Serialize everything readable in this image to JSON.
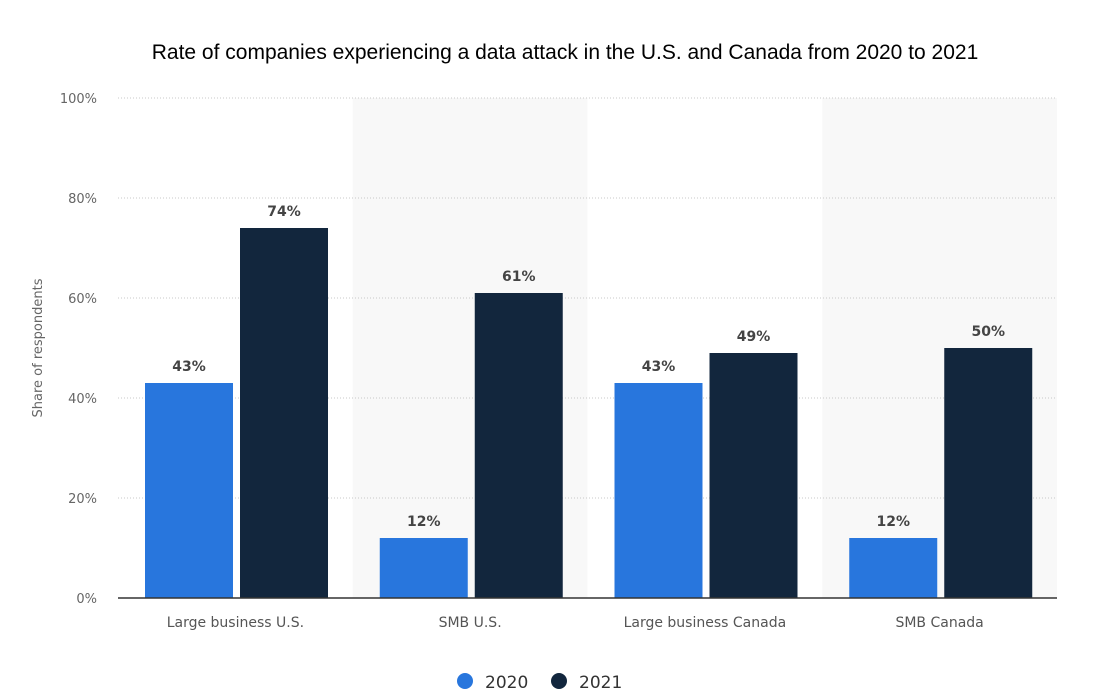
{
  "chart_data": {
    "type": "bar",
    "title": "Rate of companies experiencing a data attack in the U.S. and Canada from 2020 to 2021",
    "xlabel": "",
    "ylabel": "Share of respondents",
    "ylim": [
      0,
      100
    ],
    "yticks": [
      0,
      20,
      40,
      60,
      80,
      100
    ],
    "ytick_labels": [
      "0%",
      "20%",
      "40%",
      "60%",
      "80%",
      "100%"
    ],
    "grid": true,
    "legend_position": "bottom-center",
    "categories": [
      "Large business U.S.",
      "SMB U.S.",
      "Large business Canada",
      "SMB Canada"
    ],
    "series": [
      {
        "name": "2020",
        "color": "#2876dd",
        "values": [
          43,
          12,
          43,
          12
        ],
        "labels": [
          "43%",
          "12%",
          "43%",
          "12%"
        ]
      },
      {
        "name": "2021",
        "color": "#12263d",
        "values": [
          74,
          61,
          49,
          50
        ],
        "labels": [
          "74%",
          "61%",
          "49%",
          "50%"
        ]
      }
    ]
  }
}
